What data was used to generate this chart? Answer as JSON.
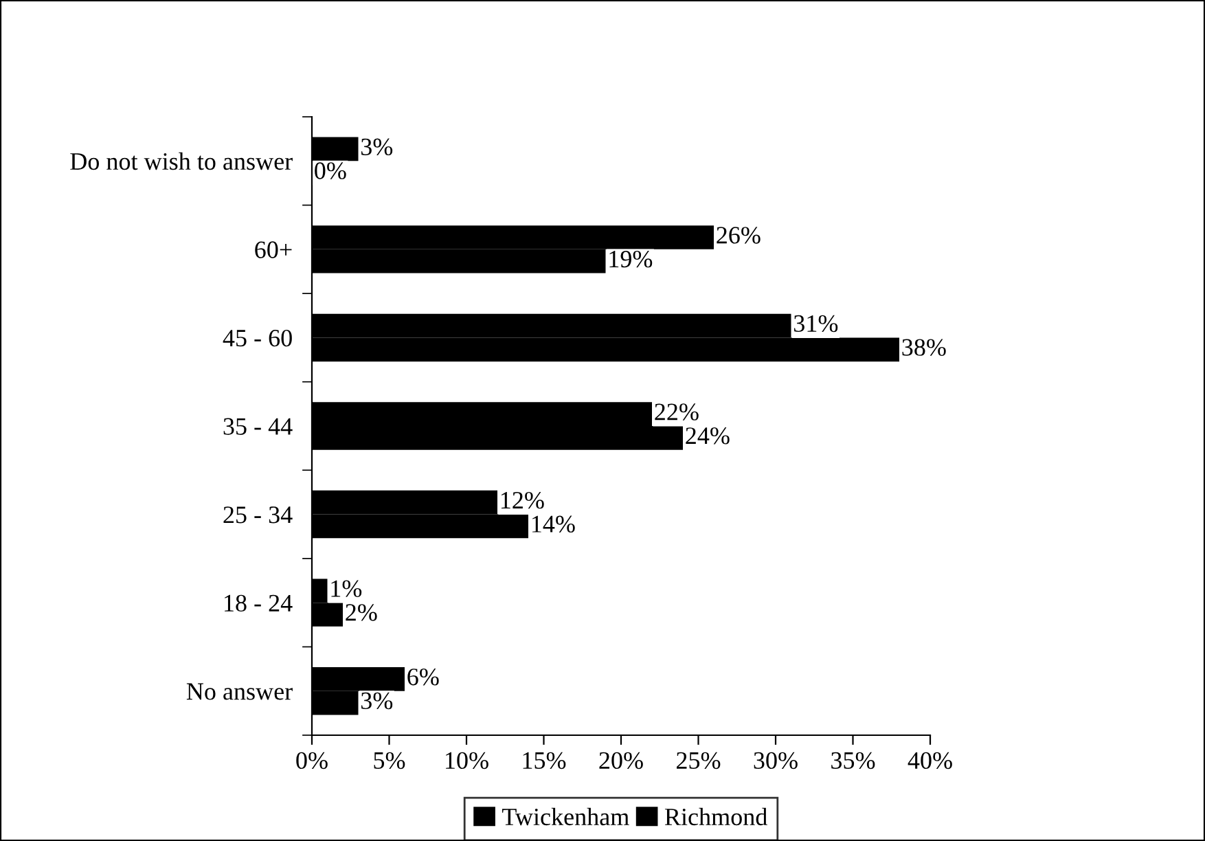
{
  "chart_data": {
    "type": "bar",
    "orientation": "horizontal",
    "categories": [
      "Do not wish to answer",
      "60+",
      "45 - 60",
      "35 - 44",
      "25 - 34",
      "18 - 24",
      "No answer"
    ],
    "series": [
      {
        "name": "Twickenham",
        "color": "#000000",
        "values": [
          3,
          26,
          31,
          22,
          12,
          1,
          6
        ],
        "value_labels": [
          "3%",
          "26%",
          "31%",
          "22%",
          "12%",
          "1%",
          "6%"
        ]
      },
      {
        "name": "Richmond",
        "color": "#000000",
        "values": [
          0,
          19,
          38,
          24,
          14,
          2,
          3
        ],
        "value_labels": [
          "0%",
          "19%",
          "38%",
          "24%",
          "14%",
          "2%",
          "3%"
        ]
      }
    ],
    "xlim": [
      0,
      40
    ],
    "xticks": [
      {
        "value": 0,
        "label": "0%"
      },
      {
        "value": 5,
        "label": "5%"
      },
      {
        "value": 10,
        "label": "10%"
      },
      {
        "value": 15,
        "label": "15%"
      },
      {
        "value": 20,
        "label": "20%"
      },
      {
        "value": 25,
        "label": "25%"
      },
      {
        "value": 30,
        "label": "30%"
      },
      {
        "value": 35,
        "label": "35%"
      },
      {
        "value": 40,
        "label": "40%"
      }
    ],
    "grid": false,
    "legend": "bottom"
  }
}
